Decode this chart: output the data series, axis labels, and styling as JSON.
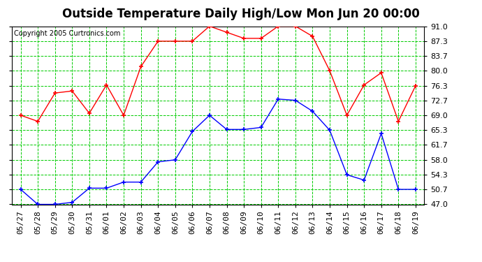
{
  "title": "Outside Temperature Daily High/Low Mon Jun 20 00:00",
  "copyright": "Copyright 2005 Curtronics.com",
  "x_labels": [
    "05/27",
    "05/28",
    "05/29",
    "05/30",
    "05/31",
    "06/01",
    "06/02",
    "06/03",
    "06/04",
    "06/05",
    "06/06",
    "06/07",
    "06/08",
    "06/09",
    "06/10",
    "06/11",
    "06/12",
    "06/13",
    "06/14",
    "06/15",
    "06/16",
    "06/17",
    "06/18",
    "06/19"
  ],
  "y_ticks": [
    47.0,
    50.7,
    54.3,
    58.0,
    61.7,
    65.3,
    69.0,
    72.7,
    76.3,
    80.0,
    83.7,
    87.3,
    91.0
  ],
  "high_temps": [
    69.0,
    67.5,
    74.5,
    75.0,
    69.5,
    76.5,
    69.0,
    81.0,
    87.3,
    87.3,
    87.3,
    91.0,
    89.5,
    88.0,
    88.0,
    91.0,
    91.0,
    88.5,
    80.0,
    69.0,
    76.5,
    79.5,
    67.5,
    76.3
  ],
  "low_temps": [
    50.7,
    47.0,
    47.0,
    47.5,
    51.0,
    51.0,
    52.5,
    52.5,
    57.5,
    58.0,
    65.0,
    69.0,
    65.5,
    65.5,
    66.0,
    73.0,
    72.7,
    70.0,
    65.3,
    54.3,
    53.0,
    64.5,
    50.7,
    50.7
  ],
  "high_color": "#ff0000",
  "low_color": "#0000ff",
  "bg_color": "#ffffff",
  "grid_color": "#00cc00",
  "border_color": "#000000",
  "title_fontsize": 12,
  "copyright_fontsize": 7,
  "tick_fontsize": 8,
  "ylim": [
    47.0,
    91.0
  ]
}
